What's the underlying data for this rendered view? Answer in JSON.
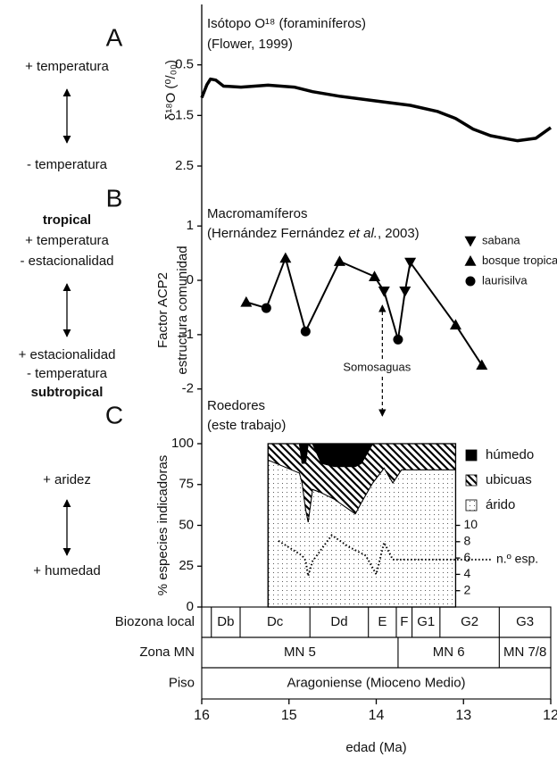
{
  "x_axis": {
    "label": "edad (Ma)",
    "xlim": [
      16,
      12
    ],
    "xticks": [
      16,
      15,
      14,
      13,
      12
    ]
  },
  "chart_data": [
    {
      "type": "line",
      "title": "Isótopo O¹⁸ (foraminíferos)",
      "subtitle": "(Flower, 1999)",
      "ylabel": "δ¹⁸O (⁰/₀₀)",
      "ylim": [
        2.5,
        -0.5
      ],
      "yticks": [
        0.5,
        1.5,
        2.5
      ],
      "color": "#000000",
      "x": [
        16.0,
        15.94,
        15.9,
        15.84,
        15.75,
        15.55,
        15.24,
        14.94,
        14.73,
        14.42,
        14.02,
        13.61,
        13.3,
        13.09,
        12.89,
        12.69,
        12.48,
        12.38,
        12.17,
        12.0
      ],
      "values": [
        1.15,
        0.89,
        0.78,
        0.8,
        0.92,
        0.94,
        0.9,
        0.94,
        1.03,
        1.12,
        1.21,
        1.3,
        1.42,
        1.56,
        1.77,
        1.9,
        1.97,
        2.0,
        1.95,
        1.74
      ]
    },
    {
      "type": "scatter",
      "title": "Macromamíferos",
      "subtitle": [
        {
          "text": "(Hernández Fernández ",
          "italic": false
        },
        {
          "text": "et al.",
          "italic": true
        },
        {
          "text": ", 2003)",
          "italic": false
        }
      ],
      "ylabel": [
        "Factor ACP2",
        "estructura comunidad"
      ],
      "ylim": [
        -2.3,
        1.2
      ],
      "yticks": [
        1,
        0,
        -1,
        -2
      ],
      "connected": true,
      "series": [
        {
          "name": "sabana",
          "marker": "triangle-down",
          "color": "#000000",
          "x": [
            13.91,
            13.67,
            13.61
          ],
          "values": [
            -0.2,
            -0.2,
            0.33
          ]
        },
        {
          "name": "bosque tropical",
          "marker": "triangle-up",
          "color": "#000000",
          "x": [
            15.49,
            15.04,
            14.42,
            14.02,
            13.09,
            12.79
          ],
          "values": [
            -0.4,
            0.41,
            0.35,
            0.07,
            -0.82,
            -1.56
          ]
        },
        {
          "name": "laurisilva",
          "marker": "circle",
          "color": "#000000",
          "x": [
            15.26,
            14.81,
            13.75
          ],
          "values": [
            -0.51,
            -0.94,
            -1.09
          ]
        }
      ],
      "annotation": {
        "text": "Somosaguas",
        "x": 13.93
      }
    },
    {
      "type": "stacked_area",
      "title": "Roedores",
      "subtitle": "(este trabajo)",
      "ylabel": "% especies indicadoras",
      "ylim": [
        0,
        100
      ],
      "yticks": [
        0,
        25,
        50,
        75,
        100
      ],
      "y2lim": [
        0,
        20
      ],
      "y2ticks": [
        2,
        4,
        6,
        8,
        10
      ],
      "x": [
        15.24,
        14.88,
        14.85,
        14.81,
        14.78,
        14.73,
        14.63,
        14.48,
        14.24,
        14.17,
        14.04,
        13.91,
        13.81,
        13.71,
        13.09
      ],
      "series": [
        {
          "name": "árido",
          "pattern": "dots",
          "values": [
            90,
            82,
            76,
            60,
            52,
            72,
            70,
            66,
            57,
            64,
            76,
            85,
            76,
            84,
            84
          ]
        },
        {
          "name": "ubicuas",
          "pattern": "hatch",
          "values": [
            10,
            18,
            12,
            28,
            48,
            28,
            18,
            20,
            29,
            24,
            24,
            15,
            24,
            16,
            16
          ]
        },
        {
          "name": "húmedo",
          "pattern": "solid",
          "values": [
            0,
            0,
            12,
            12,
            0,
            0,
            12,
            14,
            14,
            12,
            0,
            0,
            0,
            0,
            0
          ]
        }
      ],
      "count_series": {
        "name": "n.º esp.",
        "axis": "y2",
        "style": "dotted",
        "x": [
          15.12,
          14.94,
          14.85,
          14.81,
          14.78,
          14.73,
          14.51,
          14.32,
          14.12,
          14.0,
          13.91,
          13.81,
          13.71,
          13.09
        ],
        "values": [
          8.1,
          6.9,
          6.3,
          5.7,
          3.8,
          5.6,
          8.8,
          7.4,
          6.3,
          4.0,
          7.9,
          5.8,
          5.8,
          5.8
        ]
      }
    }
  ],
  "side_labels": [
    {
      "letter": "A",
      "top": [
        {
          "text": "+ temperatura",
          "bold": false
        }
      ],
      "bottom": [
        {
          "text": "- temperatura",
          "bold": false
        }
      ]
    },
    {
      "letter": "B",
      "top": [
        {
          "text": "tropical",
          "bold": true
        },
        {
          "text": "+ temperatura",
          "bold": false
        },
        {
          "text": "- estacionalidad",
          "bold": false
        }
      ],
      "bottom": [
        {
          "text": "+ estacionalidad",
          "bold": false
        },
        {
          "text": "- temperatura",
          "bold": false
        },
        {
          "text": "subtropical",
          "bold": true
        }
      ]
    },
    {
      "letter": "C",
      "top": [
        {
          "text": "+ aridez",
          "bold": false
        }
      ],
      "bottom": [
        {
          "text": "+ humedad",
          "bold": false
        }
      ]
    }
  ],
  "stratigraphy": {
    "rows": [
      {
        "label": "Biozona local",
        "units": [
          {
            "name": null,
            "from": 16,
            "to": 15.89
          },
          {
            "name": "Db",
            "from": 15.89,
            "to": 15.56
          },
          {
            "name": "Dc",
            "from": 15.56,
            "to": 14.76
          },
          {
            "name": "Dd",
            "from": 14.76,
            "to": 14.09
          },
          {
            "name": "E",
            "from": 14.09,
            "to": 13.77
          },
          {
            "name": "F",
            "from": 13.77,
            "to": 13.59
          },
          {
            "name": "G1",
            "from": 13.59,
            "to": 13.27
          },
          {
            "name": "G2",
            "from": 13.27,
            "to": 12.59
          },
          {
            "name": "G3",
            "from": 12.59,
            "to": 12
          }
        ]
      },
      {
        "label": "Zona MN",
        "units": [
          {
            "name": "MN 5",
            "from": 16,
            "to": 13.75
          },
          {
            "name": "MN 6",
            "from": 13.75,
            "to": 12.59
          },
          {
            "name": "MN 7/8",
            "from": 12.59,
            "to": 12
          }
        ]
      },
      {
        "label": "Piso",
        "units": [
          {
            "name": "Aragoniense (Mioceno Medio)",
            "from": 16,
            "to": 12
          }
        ]
      }
    ]
  }
}
